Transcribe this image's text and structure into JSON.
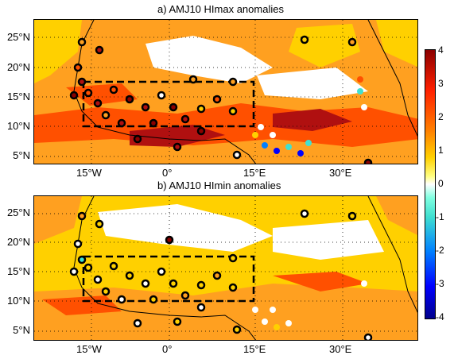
{
  "panel_a": {
    "title": "a) AMJ10 HImax anomalies"
  },
  "panel_b": {
    "title": "b) AMJ10 HImin anomalies"
  },
  "axes": {
    "y_ticks": [
      "25°N",
      "20°N",
      "15°N",
      "10°N",
      "5°N"
    ],
    "x_ticks": [
      "15°W",
      "0°",
      "15°E",
      "30°E"
    ]
  },
  "colorbar": {
    "ticks": [
      "4",
      "3",
      "2",
      "1",
      "0",
      "-1",
      "-2",
      "-3",
      "-4"
    ],
    "colors": [
      "#00008b",
      "#0000ff",
      "#0080ff",
      "#40e0d0",
      "#ffffff",
      "#ffff00",
      "#ffa500",
      "#ff4500",
      "#8b0000"
    ]
  },
  "colors": {
    "land_mid": "#ffa020",
    "land_high": "#ff5000",
    "land_low": "#ffd000",
    "outline": "#000000"
  }
}
